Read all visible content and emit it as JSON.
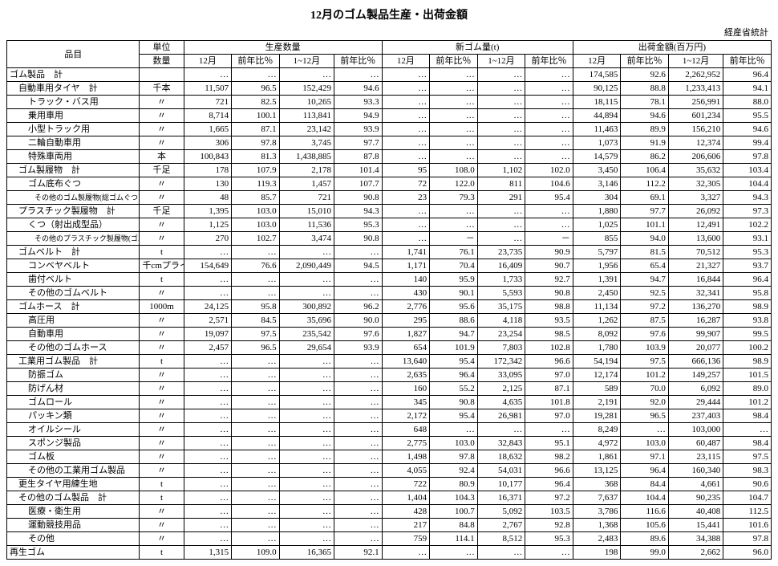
{
  "title": "12月のゴム製品生産・出荷金額",
  "source": "経産省統計",
  "header": {
    "item": "品目",
    "unit_group": "単位",
    "unit_sub": "数量",
    "prod_group": "生産数量",
    "rubber_group": "新ゴム量(t)",
    "ship_group": "出荷金額(百万円)",
    "dec": "12月",
    "yoy": "前年比％",
    "jan_dec": "1~12月"
  },
  "rows": [
    {
      "label": "ゴム製品　計",
      "cls": "",
      "unit": "",
      "p12": "…",
      "pYoy": "…",
      "pCum": "…",
      "pCumYoy": "…",
      "r12": "…",
      "rYoy": "…",
      "rCum": "…",
      "rCumYoy": "…",
      "s12": "174,585",
      "sYoy": "92.6",
      "sCum": "2,262,952",
      "sCumYoy": "96.4"
    },
    {
      "label": "自動車用タイヤ　計",
      "cls": "indent1",
      "unit": "千本",
      "p12": "11,507",
      "pYoy": "96.5",
      "pCum": "152,429",
      "pCumYoy": "94.6",
      "r12": "…",
      "rYoy": "…",
      "rCum": "…",
      "rCumYoy": "…",
      "s12": "90,125",
      "sYoy": "88.8",
      "sCum": "1,233,413",
      "sCumYoy": "94.1"
    },
    {
      "label": "トラック・バス用",
      "cls": "indent2",
      "unit": "〃",
      "p12": "721",
      "pYoy": "82.5",
      "pCum": "10,265",
      "pCumYoy": "93.3",
      "r12": "…",
      "rYoy": "…",
      "rCum": "…",
      "rCumYoy": "…",
      "s12": "18,115",
      "sYoy": "78.1",
      "sCum": "256,991",
      "sCumYoy": "88.0"
    },
    {
      "label": "乗用車用",
      "cls": "indent2",
      "unit": "〃",
      "p12": "8,714",
      "pYoy": "100.1",
      "pCum": "113,841",
      "pCumYoy": "94.9",
      "r12": "…",
      "rYoy": "…",
      "rCum": "…",
      "rCumYoy": "…",
      "s12": "44,894",
      "sYoy": "94.6",
      "sCum": "601,234",
      "sCumYoy": "95.5"
    },
    {
      "label": "小型トラック用",
      "cls": "indent2",
      "unit": "〃",
      "p12": "1,665",
      "pYoy": "87.1",
      "pCum": "23,142",
      "pCumYoy": "93.9",
      "r12": "…",
      "rYoy": "…",
      "rCum": "…",
      "rCumYoy": "…",
      "s12": "11,463",
      "sYoy": "89.9",
      "sCum": "156,210",
      "sCumYoy": "94.6"
    },
    {
      "label": "二輪自動車用",
      "cls": "indent2",
      "unit": "〃",
      "p12": "306",
      "pYoy": "97.8",
      "pCum": "3,745",
      "pCumYoy": "97.7",
      "r12": "…",
      "rYoy": "…",
      "rCum": "…",
      "rCumYoy": "…",
      "s12": "1,073",
      "sYoy": "91.9",
      "sCum": "12,374",
      "sCumYoy": "99.4"
    },
    {
      "label": "特殊車両用",
      "cls": "indent2",
      "unit": "本",
      "p12": "100,843",
      "pYoy": "81.3",
      "pCum": "1,438,885",
      "pCumYoy": "87.8",
      "r12": "…",
      "rYoy": "…",
      "rCum": "…",
      "rCumYoy": "…",
      "s12": "14,579",
      "sYoy": "86.2",
      "sCum": "206,606",
      "sCumYoy": "97.8"
    },
    {
      "label": "ゴム製履物　計",
      "cls": "indent1",
      "unit": "千足",
      "p12": "178",
      "pYoy": "107.9",
      "pCum": "2,178",
      "pCumYoy": "101.4",
      "r12": "95",
      "rYoy": "108.0",
      "rCum": "1,102",
      "rCumYoy": "102.0",
      "s12": "3,450",
      "sYoy": "106.4",
      "sCum": "35,632",
      "sCumYoy": "103.4"
    },
    {
      "label": "ゴム底布ぐつ",
      "cls": "indent2",
      "unit": "〃",
      "p12": "130",
      "pYoy": "119.3",
      "pCum": "1,457",
      "pCumYoy": "107.7",
      "r12": "72",
      "rYoy": "122.0",
      "rCum": "811",
      "rCumYoy": "104.6",
      "s12": "3,146",
      "sYoy": "112.2",
      "sCum": "32,305",
      "sCumYoy": "104.4"
    },
    {
      "label": "その他のゴム製履物(総ゴムぐつを含む)",
      "cls": "indent3",
      "unit": "〃",
      "p12": "48",
      "pYoy": "85.7",
      "pCum": "721",
      "pCumYoy": "90.8",
      "r12": "23",
      "rYoy": "79.3",
      "rCum": "291",
      "rCumYoy": "95.4",
      "s12": "304",
      "sYoy": "69.1",
      "sCum": "3,327",
      "sCumYoy": "94.3"
    },
    {
      "label": "プラスチック製履物　計",
      "cls": "indent1",
      "unit": "千足",
      "p12": "1,395",
      "pYoy": "103.0",
      "pCum": "15,010",
      "pCumYoy": "94.3",
      "r12": "…",
      "rYoy": "…",
      "rCum": "…",
      "rCumYoy": "…",
      "s12": "1,880",
      "sYoy": "97.7",
      "sCum": "26,092",
      "sCumYoy": "97.3"
    },
    {
      "label": "くつ（射出成型品）",
      "cls": "indent2",
      "unit": "〃",
      "p12": "1,125",
      "pYoy": "103.0",
      "pCum": "11,536",
      "pCumYoy": "95.3",
      "r12": "…",
      "rYoy": "…",
      "rCum": "…",
      "rCumYoy": "…",
      "s12": "1,025",
      "sYoy": "101.1",
      "sCum": "12,491",
      "sCumYoy": "102.2"
    },
    {
      "label": "その他のプラスチック製履物(ゴム・プラ)",
      "cls": "indent3",
      "unit": "〃",
      "p12": "270",
      "pYoy": "102.7",
      "pCum": "3,474",
      "pCumYoy": "90.8",
      "r12": "…",
      "rYoy": "－",
      "rCum": "…",
      "rCumYoy": "－",
      "s12": "855",
      "sYoy": "94.0",
      "sCum": "13,600",
      "sCumYoy": "93.1"
    },
    {
      "label": "ゴムベルト　計",
      "cls": "indent1",
      "unit": "t",
      "p12": "…",
      "pYoy": "…",
      "pCum": "…",
      "pCumYoy": "…",
      "r12": "1,741",
      "rYoy": "76.1",
      "rCum": "23,735",
      "rCumYoy": "90.9",
      "s12": "5,797",
      "sYoy": "81.5",
      "sCum": "70,512",
      "sCumYoy": "95.3"
    },
    {
      "label": "コンベヤベルト",
      "cls": "indent2",
      "unit": "千cmプライ",
      "p12": "154,649",
      "pYoy": "76.6",
      "pCum": "2,090,449",
      "pCumYoy": "94.5",
      "r12": "1,171",
      "rYoy": "70.4",
      "rCum": "16,409",
      "rCumYoy": "90.7",
      "s12": "1,956",
      "sYoy": "65.4",
      "sCum": "21,327",
      "sCumYoy": "93.7"
    },
    {
      "label": "歯付ベルト",
      "cls": "indent2",
      "unit": "t",
      "p12": "…",
      "pYoy": "…",
      "pCum": "…",
      "pCumYoy": "…",
      "r12": "140",
      "rYoy": "95.9",
      "rCum": "1,733",
      "rCumYoy": "92.7",
      "s12": "1,391",
      "sYoy": "94.7",
      "sCum": "16,844",
      "sCumYoy": "96.4"
    },
    {
      "label": "その他のゴムベルト",
      "cls": "indent2",
      "unit": "〃",
      "p12": "…",
      "pYoy": "…",
      "pCum": "…",
      "pCumYoy": "…",
      "r12": "430",
      "rYoy": "90.1",
      "rCum": "5,593",
      "rCumYoy": "90.8",
      "s12": "2,450",
      "sYoy": "92.5",
      "sCum": "32,341",
      "sCumYoy": "95.8"
    },
    {
      "label": "ゴムホース　計",
      "cls": "indent1",
      "unit": "1000m",
      "p12": "24,125",
      "pYoy": "95.8",
      "pCum": "300,892",
      "pCumYoy": "96.2",
      "r12": "2,776",
      "rYoy": "95.6",
      "rCum": "35,175",
      "rCumYoy": "98.8",
      "s12": "11,134",
      "sYoy": "97.2",
      "sCum": "136,270",
      "sCumYoy": "98.9"
    },
    {
      "label": "高圧用",
      "cls": "indent2",
      "unit": "〃",
      "p12": "2,571",
      "pYoy": "84.5",
      "pCum": "35,696",
      "pCumYoy": "90.0",
      "r12": "295",
      "rYoy": "88.6",
      "rCum": "4,118",
      "rCumYoy": "93.5",
      "s12": "1,262",
      "sYoy": "87.5",
      "sCum": "16,287",
      "sCumYoy": "93.8"
    },
    {
      "label": "自動車用",
      "cls": "indent2",
      "unit": "〃",
      "p12": "19,097",
      "pYoy": "97.5",
      "pCum": "235,542",
      "pCumYoy": "97.6",
      "r12": "1,827",
      "rYoy": "94.7",
      "rCum": "23,254",
      "rCumYoy": "98.5",
      "s12": "8,092",
      "sYoy": "97.6",
      "sCum": "99,907",
      "sCumYoy": "99.5"
    },
    {
      "label": "その他のゴムホース",
      "cls": "indent2",
      "unit": "〃",
      "p12": "2,457",
      "pYoy": "96.5",
      "pCum": "29,654",
      "pCumYoy": "93.9",
      "r12": "654",
      "rYoy": "101.9",
      "rCum": "7,803",
      "rCumYoy": "102.8",
      "s12": "1,780",
      "sYoy": "103.9",
      "sCum": "20,077",
      "sCumYoy": "100.2"
    },
    {
      "label": "工業用ゴム製品　計",
      "cls": "indent1",
      "unit": "t",
      "p12": "…",
      "pYoy": "…",
      "pCum": "…",
      "pCumYoy": "…",
      "r12": "13,640",
      "rYoy": "95.4",
      "rCum": "172,342",
      "rCumYoy": "96.6",
      "s12": "54,194",
      "sYoy": "97.5",
      "sCum": "666,136",
      "sCumYoy": "98.9"
    },
    {
      "label": "防振ゴム",
      "cls": "indent2",
      "unit": "〃",
      "p12": "…",
      "pYoy": "…",
      "pCum": "…",
      "pCumYoy": "…",
      "r12": "2,635",
      "rYoy": "96.4",
      "rCum": "33,095",
      "rCumYoy": "97.0",
      "s12": "12,174",
      "sYoy": "101.2",
      "sCum": "149,257",
      "sCumYoy": "101.5"
    },
    {
      "label": "防げん材",
      "cls": "indent2",
      "unit": "〃",
      "p12": "…",
      "pYoy": "…",
      "pCum": "…",
      "pCumYoy": "…",
      "r12": "160",
      "rYoy": "55.2",
      "rCum": "2,125",
      "rCumYoy": "87.1",
      "s12": "589",
      "sYoy": "70.0",
      "sCum": "6,092",
      "sCumYoy": "89.0"
    },
    {
      "label": "ゴムロール",
      "cls": "indent2",
      "unit": "〃",
      "p12": "…",
      "pYoy": "…",
      "pCum": "…",
      "pCumYoy": "…",
      "r12": "345",
      "rYoy": "90.8",
      "rCum": "4,635",
      "rCumYoy": "101.8",
      "s12": "2,191",
      "sYoy": "92.0",
      "sCum": "29,444",
      "sCumYoy": "101.2"
    },
    {
      "label": "パッキン類",
      "cls": "indent2",
      "unit": "〃",
      "p12": "…",
      "pYoy": "…",
      "pCum": "…",
      "pCumYoy": "…",
      "r12": "2,172",
      "rYoy": "95.4",
      "rCum": "26,981",
      "rCumYoy": "97.0",
      "s12": "19,281",
      "sYoy": "96.5",
      "sCum": "237,403",
      "sCumYoy": "98.4"
    },
    {
      "label": "オイルシール",
      "cls": "indent2",
      "unit": "〃",
      "p12": "…",
      "pYoy": "…",
      "pCum": "…",
      "pCumYoy": "…",
      "r12": "648",
      "rYoy": "…",
      "rCum": "…",
      "rCumYoy": "…",
      "s12": "8,249",
      "sYoy": "…",
      "sCum": "103,000",
      "sCumYoy": "…"
    },
    {
      "label": "スポンジ製品",
      "cls": "indent2",
      "unit": "〃",
      "p12": "…",
      "pYoy": "…",
      "pCum": "…",
      "pCumYoy": "…",
      "r12": "2,775",
      "rYoy": "103.0",
      "rCum": "32,843",
      "rCumYoy": "95.1",
      "s12": "4,972",
      "sYoy": "103.0",
      "sCum": "60,487",
      "sCumYoy": "98.4"
    },
    {
      "label": "ゴム板",
      "cls": "indent2",
      "unit": "〃",
      "p12": "…",
      "pYoy": "…",
      "pCum": "…",
      "pCumYoy": "…",
      "r12": "1,498",
      "rYoy": "97.8",
      "rCum": "18,632",
      "rCumYoy": "98.2",
      "s12": "1,861",
      "sYoy": "97.1",
      "sCum": "23,115",
      "sCumYoy": "97.5"
    },
    {
      "label": "その他の工業用ゴム製品",
      "cls": "indent2",
      "unit": "〃",
      "p12": "…",
      "pYoy": "…",
      "pCum": "…",
      "pCumYoy": "…",
      "r12": "4,055",
      "rYoy": "92.4",
      "rCum": "54,031",
      "rCumYoy": "96.6",
      "s12": "13,125",
      "sYoy": "96.4",
      "sCum": "160,340",
      "sCumYoy": "98.3"
    },
    {
      "label": "更生タイヤ用練生地",
      "cls": "indent1",
      "unit": "t",
      "p12": "…",
      "pYoy": "…",
      "pCum": "…",
      "pCumYoy": "…",
      "r12": "722",
      "rYoy": "80.9",
      "rCum": "10,177",
      "rCumYoy": "96.4",
      "s12": "368",
      "sYoy": "84.4",
      "sCum": "4,661",
      "sCumYoy": "90.6"
    },
    {
      "label": "その他のゴム製品　計",
      "cls": "indent1",
      "unit": "t",
      "p12": "…",
      "pYoy": "…",
      "pCum": "…",
      "pCumYoy": "…",
      "r12": "1,404",
      "rYoy": "104.3",
      "rCum": "16,371",
      "rCumYoy": "97.2",
      "s12": "7,637",
      "sYoy": "104.4",
      "sCum": "90,235",
      "sCumYoy": "104.7"
    },
    {
      "label": "医療・衛生用",
      "cls": "indent2",
      "unit": "〃",
      "p12": "…",
      "pYoy": "…",
      "pCum": "…",
      "pCumYoy": "…",
      "r12": "428",
      "rYoy": "100.7",
      "rCum": "5,092",
      "rCumYoy": "103.5",
      "s12": "3,786",
      "sYoy": "116.6",
      "sCum": "40,408",
      "sCumYoy": "112.5"
    },
    {
      "label": "運動競技用品",
      "cls": "indent2",
      "unit": "〃",
      "p12": "…",
      "pYoy": "…",
      "pCum": "…",
      "pCumYoy": "…",
      "r12": "217",
      "rYoy": "84.8",
      "rCum": "2,767",
      "rCumYoy": "92.8",
      "s12": "1,368",
      "sYoy": "105.6",
      "sCum": "15,441",
      "sCumYoy": "101.6"
    },
    {
      "label": "その他",
      "cls": "indent2",
      "unit": "〃",
      "p12": "…",
      "pYoy": "…",
      "pCum": "…",
      "pCumYoy": "…",
      "r12": "759",
      "rYoy": "114.1",
      "rCum": "8,512",
      "rCumYoy": "95.3",
      "s12": "2,483",
      "sYoy": "89.6",
      "sCum": "34,388",
      "sCumYoy": "97.8"
    },
    {
      "label": "再生ゴム",
      "cls": "",
      "unit": "t",
      "p12": "1,315",
      "pYoy": "109.0",
      "pCum": "16,365",
      "pCumYoy": "92.1",
      "r12": "…",
      "rYoy": "…",
      "rCum": "…",
      "rCumYoy": "…",
      "s12": "198",
      "sYoy": "99.0",
      "sCum": "2,662",
      "sCumYoy": "96.0"
    }
  ]
}
